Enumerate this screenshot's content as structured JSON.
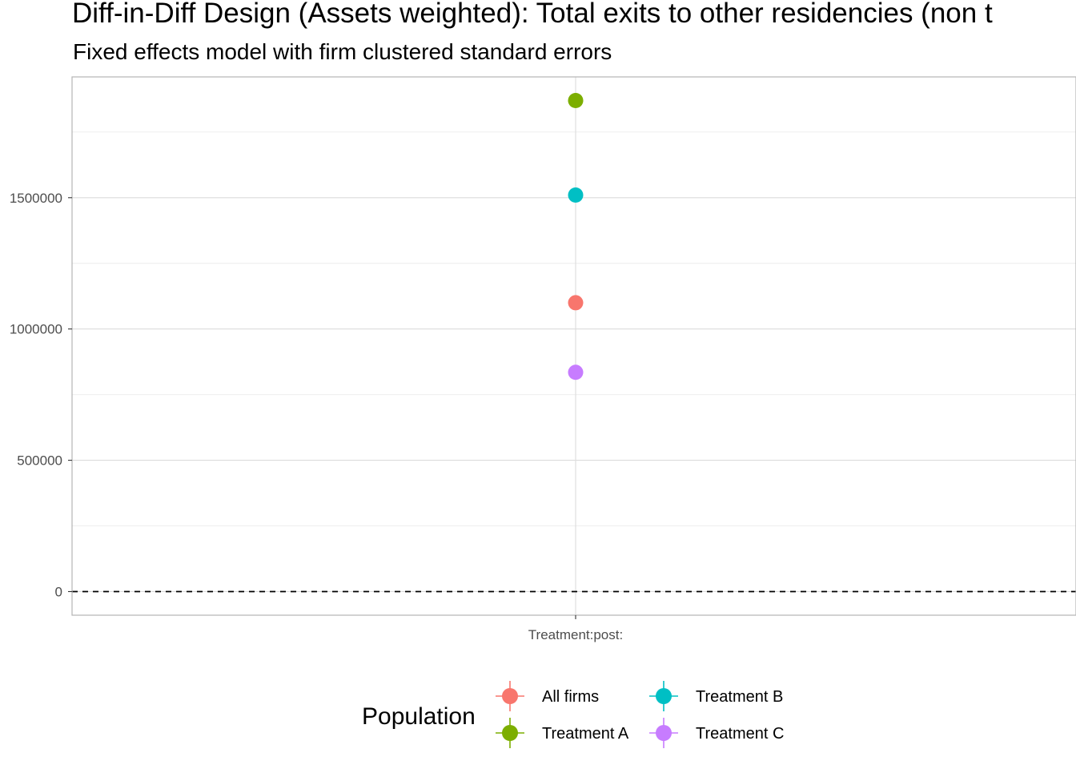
{
  "chart_data": {
    "type": "scatter",
    "title": "Diff-in-Diff Design (Assets weighted): Total exits to other residencies (non t",
    "subtitle": "Fixed effects model with firm clustered standard errors",
    "xlabel": "",
    "ylabel": "",
    "categories": [
      "Treatment:post:"
    ],
    "ylim": [
      -90000,
      1960000
    ],
    "yticks": [
      0,
      500000,
      1000000,
      1500000
    ],
    "ytick_labels": [
      "0",
      "500000",
      "1000000",
      "1500000"
    ],
    "reference_line": {
      "y": 0,
      "style": "dashed"
    },
    "grid": true,
    "legend": {
      "title": "Population",
      "position": "bottom"
    },
    "series": [
      {
        "name": "All firms",
        "color": "#F8766D",
        "values": [
          1100000
        ]
      },
      {
        "name": "Treatment A",
        "color": "#7CAE00",
        "values": [
          1870000
        ]
      },
      {
        "name": "Treatment B",
        "color": "#00BFC4",
        "values": [
          1510000
        ]
      },
      {
        "name": "Treatment C",
        "color": "#C77CFF",
        "values": [
          835000
        ]
      }
    ]
  }
}
